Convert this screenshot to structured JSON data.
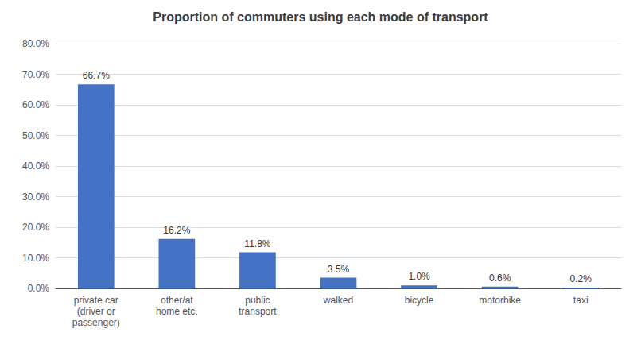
{
  "chart_data": {
    "type": "bar",
    "title": "Proportion of commuters using each mode of transport",
    "categories": [
      "private car\n(driver or\npassenger)",
      "other/at\nhome etc.",
      "public\ntransport",
      "walked",
      "bicycle",
      "motorbike",
      "taxi"
    ],
    "values": [
      0.667,
      0.162,
      0.118,
      0.035,
      0.01,
      0.006,
      0.002
    ],
    "value_labels": [
      "66.7%",
      "16.2%",
      "11.8%",
      "3.5%",
      "1.0%",
      "0.6%",
      "0.2%"
    ],
    "data_labels": true,
    "color": "#4472C4",
    "ylim": [
      0,
      0.8
    ],
    "yticks": [
      {
        "value": 0.0,
        "label": "0.0%"
      },
      {
        "value": 0.1,
        "label": "10.0%"
      },
      {
        "value": 0.2,
        "label": "20.0%"
      },
      {
        "value": 0.3,
        "label": "30.0%"
      },
      {
        "value": 0.4,
        "label": "40.0%"
      },
      {
        "value": 0.5,
        "label": "50.0%"
      },
      {
        "value": 0.6,
        "label": "60.0%"
      },
      {
        "value": 0.7,
        "label": "70.0%"
      },
      {
        "value": 0.8,
        "label": "80.0%"
      }
    ],
    "grid": true
  }
}
